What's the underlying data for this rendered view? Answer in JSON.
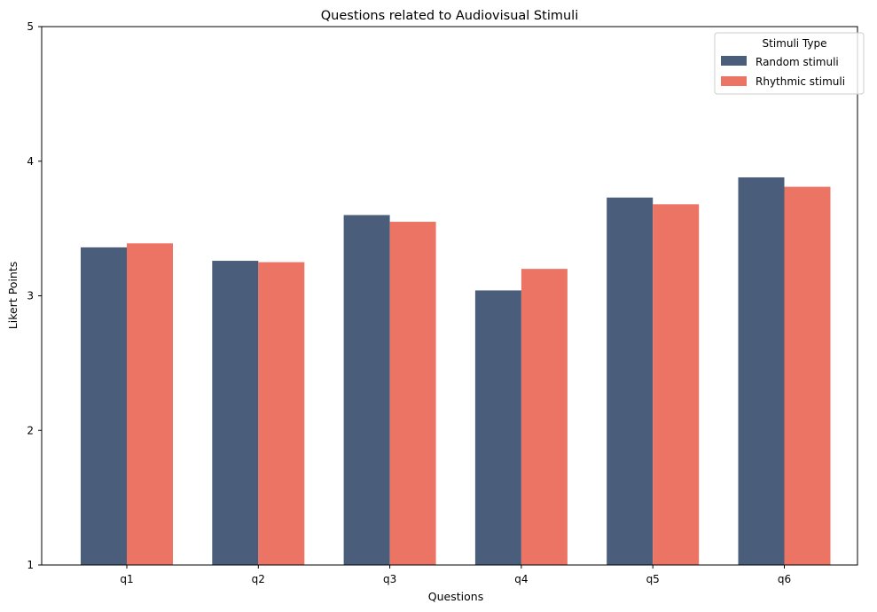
{
  "chart_data": {
    "type": "bar",
    "title": "Questions related to Audiovisual Stimuli",
    "xlabel": "Questions",
    "ylabel": "Likert Points",
    "categories": [
      "q1",
      "q2",
      "q3",
      "q4",
      "q5",
      "q6"
    ],
    "ylim": [
      1,
      5
    ],
    "yticks": [
      "1",
      "2",
      "3",
      "4",
      "5"
    ],
    "grid": false,
    "legend": {
      "title": "Stimuli Type",
      "placement": "top-right"
    },
    "series": [
      {
        "name": "Random stimuli",
        "color": "#4a5e7b",
        "values": [
          3.36,
          3.26,
          3.6,
          3.04,
          3.73,
          3.88
        ]
      },
      {
        "name": "Rhythmic stimuli",
        "color": "#eb7464",
        "values": [
          3.39,
          3.25,
          3.55,
          3.2,
          3.68,
          3.81
        ]
      }
    ]
  }
}
